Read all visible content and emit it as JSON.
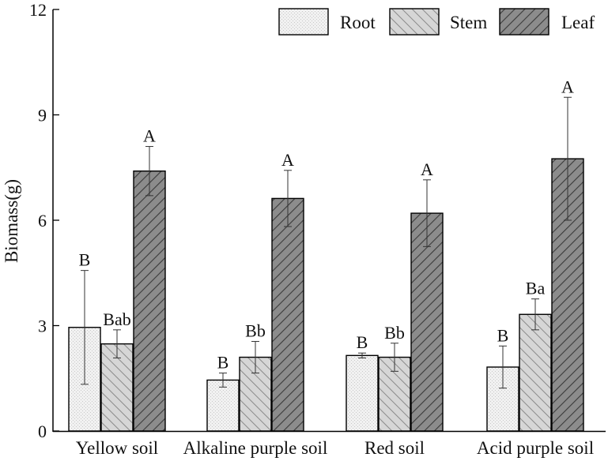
{
  "chart_data": {
    "type": "bar",
    "title": "",
    "xlabel": "",
    "ylabel": "Biomass(g)",
    "ylim": [
      0,
      12
    ],
    "yticks": [
      "0",
      "3",
      "6",
      "9",
      "12"
    ],
    "categories": [
      "Yellow soil",
      "Alkaline purple soil",
      "Red soil",
      "Acid purple soil"
    ],
    "legend_position": "top-right",
    "grid": false,
    "series": [
      {
        "name": "Root",
        "pattern": "dots",
        "fill": "#eeeeee",
        "values": [
          2.95,
          1.45,
          2.15,
          1.82
        ],
        "errors": [
          1.62,
          0.2,
          0.07,
          0.6
        ],
        "labels": [
          "B",
          "B",
          "B",
          "B"
        ]
      },
      {
        "name": "Stem",
        "pattern": "diag-light",
        "fill": "#c4c4c4",
        "values": [
          2.48,
          2.1,
          2.1,
          3.32
        ],
        "errors": [
          0.4,
          0.45,
          0.4,
          0.44
        ],
        "labels": [
          "Bab",
          "Bb",
          "Bb",
          "Ba"
        ]
      },
      {
        "name": "Leaf",
        "pattern": "diag-dark",
        "fill": "#747474",
        "values": [
          7.4,
          6.62,
          6.2,
          7.75
        ],
        "errors": [
          0.7,
          0.8,
          0.95,
          1.75
        ],
        "labels": [
          "A",
          "A",
          "A",
          "A"
        ]
      }
    ]
  }
}
